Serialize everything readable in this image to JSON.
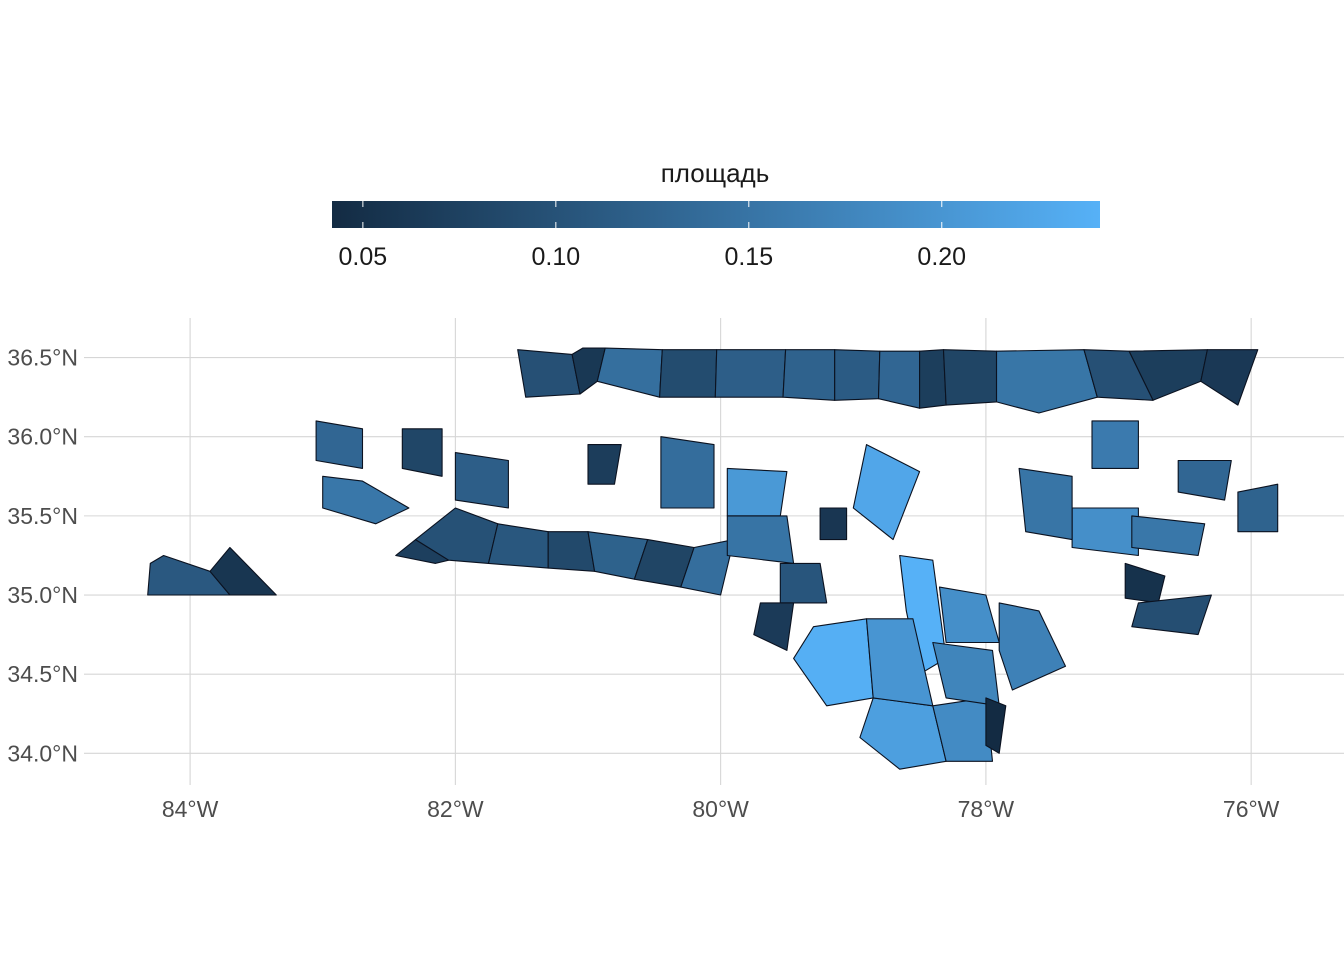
{
  "chart_data": {
    "type": "choropleth",
    "title": "",
    "legend": {
      "title": "площадь",
      "position": "top",
      "color_low": "#132B43",
      "color_high": "#56B1F7",
      "range": [
        0.042,
        0.241
      ],
      "breaks": [
        0.05,
        0.1,
        0.15,
        0.2
      ],
      "break_labels": [
        "0.05",
        "0.10",
        "0.15",
        "0.20"
      ]
    },
    "x_axis": {
      "lim": [
        -84.8,
        -75.3
      ],
      "breaks": [
        -84,
        -82,
        -80,
        -78,
        -76
      ],
      "labels": [
        "84°W",
        "82°W",
        "80°W",
        "78°W",
        "76°W"
      ]
    },
    "y_axis": {
      "lim": [
        33.8,
        36.75
      ],
      "breaks": [
        34.0,
        34.5,
        35.0,
        35.5,
        36.0,
        36.5
      ],
      "labels": [
        "34.0°N",
        "34.5°N",
        "35.0°N",
        "35.5°N",
        "36.0°N",
        "36.5°N"
      ]
    },
    "grid": true,
    "regions": [
      {
        "name": "c01",
        "value": 0.097,
        "outline": [
          [
            -81.47,
            36.25
          ],
          [
            -81.53,
            36.55
          ],
          [
            -81.12,
            36.52
          ],
          [
            -81.06,
            36.27
          ]
        ]
      },
      {
        "name": "c02",
        "value": 0.061,
        "outline": [
          [
            -81.12,
            36.52
          ],
          [
            -81.04,
            36.56
          ],
          [
            -80.87,
            36.56
          ],
          [
            -80.93,
            36.35
          ],
          [
            -81.06,
            36.27
          ]
        ]
      },
      {
        "name": "c03",
        "value": 0.143,
        "outline": [
          [
            -80.87,
            36.56
          ],
          [
            -80.44,
            36.55
          ],
          [
            -80.46,
            36.25
          ],
          [
            -80.93,
            36.35
          ]
        ]
      },
      {
        "name": "c04",
        "value": 0.07,
        "outline": [
          [
            -76.92,
            36.54
          ],
          [
            -76.33,
            36.55
          ],
          [
            -76.38,
            36.35
          ],
          [
            -76.74,
            36.23
          ]
        ]
      },
      {
        "name": "c05",
        "value": 0.153,
        "outline": [
          [
            -77.92,
            36.54
          ],
          [
            -77.26,
            36.55
          ],
          [
            -77.16,
            36.25
          ],
          [
            -77.6,
            36.15
          ],
          [
            -77.92,
            36.22
          ]
        ]
      },
      {
        "name": "c06",
        "value": 0.097,
        "outline": [
          [
            -77.26,
            36.55
          ],
          [
            -76.92,
            36.54
          ],
          [
            -76.74,
            36.23
          ],
          [
            -77.16,
            36.25
          ]
        ]
      },
      {
        "name": "c07",
        "value": 0.062,
        "outline": [
          [
            -76.33,
            36.55
          ],
          [
            -75.95,
            36.55
          ],
          [
            -76.1,
            36.2
          ],
          [
            -76.38,
            36.35
          ]
        ]
      },
      {
        "name": "c08",
        "value": 0.091,
        "outline": [
          [
            -80.44,
            36.55
          ],
          [
            -80.03,
            36.55
          ],
          [
            -80.04,
            36.25
          ],
          [
            -80.46,
            36.25
          ]
        ]
      },
      {
        "name": "c09",
        "value": 0.118,
        "outline": [
          [
            -80.03,
            36.55
          ],
          [
            -79.51,
            36.55
          ],
          [
            -79.53,
            36.25
          ],
          [
            -80.04,
            36.25
          ]
        ]
      },
      {
        "name": "c10",
        "value": 0.124,
        "outline": [
          [
            -79.51,
            36.55
          ],
          [
            -79.14,
            36.55
          ],
          [
            -79.14,
            36.23
          ],
          [
            -79.53,
            36.25
          ]
        ]
      },
      {
        "name": "c11",
        "value": 0.114,
        "outline": [
          [
            -79.14,
            36.55
          ],
          [
            -78.8,
            36.54
          ],
          [
            -78.81,
            36.24
          ],
          [
            -79.14,
            36.23
          ]
        ]
      },
      {
        "name": "c12",
        "value": 0.13,
        "outline": [
          [
            -78.8,
            36.54
          ],
          [
            -78.5,
            36.54
          ],
          [
            -78.5,
            36.18
          ],
          [
            -78.81,
            36.24
          ]
        ]
      },
      {
        "name": "c13",
        "value": 0.07,
        "outline": [
          [
            -78.5,
            36.54
          ],
          [
            -78.32,
            36.55
          ],
          [
            -78.3,
            36.2
          ],
          [
            -78.5,
            36.18
          ]
        ]
      },
      {
        "name": "c14",
        "value": 0.08,
        "outline": [
          [
            -78.32,
            36.55
          ],
          [
            -77.92,
            36.54
          ],
          [
            -77.92,
            36.22
          ],
          [
            -78.3,
            36.2
          ]
        ]
      },
      {
        "name": "c15",
        "value": 0.109,
        "outline": [
          [
            -84.2,
            35.25
          ],
          [
            -84.3,
            35.2
          ],
          [
            -84.32,
            35.0
          ],
          [
            -83.7,
            35.0
          ],
          [
            -83.85,
            35.15
          ]
        ]
      },
      {
        "name": "c16",
        "value": 0.058,
        "outline": [
          [
            -83.85,
            35.15
          ],
          [
            -83.7,
            35.0
          ],
          [
            -83.35,
            35.0
          ],
          [
            -83.7,
            35.3
          ]
        ]
      },
      {
        "name": "c17",
        "value": 0.155,
        "outline": [
          [
            -83.0,
            35.75
          ],
          [
            -82.7,
            35.72
          ],
          [
            -82.35,
            35.55
          ],
          [
            -82.6,
            35.45
          ],
          [
            -83.0,
            35.55
          ]
        ]
      },
      {
        "name": "c18",
        "value": 0.072,
        "outline": [
          [
            -82.45,
            35.25
          ],
          [
            -82.3,
            35.35
          ],
          [
            -82.05,
            35.22
          ],
          [
            -82.15,
            35.2
          ]
        ]
      },
      {
        "name": "c19",
        "value": 0.098,
        "outline": [
          [
            -82.05,
            35.22
          ],
          [
            -81.75,
            35.2
          ],
          [
            -81.68,
            35.45
          ],
          [
            -82.0,
            35.55
          ],
          [
            -82.3,
            35.35
          ]
        ]
      },
      {
        "name": "c20",
        "value": 0.107,
        "outline": [
          [
            -81.75,
            35.2
          ],
          [
            -81.3,
            35.17
          ],
          [
            -81.3,
            35.4
          ],
          [
            -81.68,
            35.45
          ]
        ]
      },
      {
        "name": "c21",
        "value": 0.086,
        "outline": [
          [
            -81.3,
            35.17
          ],
          [
            -80.95,
            35.15
          ],
          [
            -81.0,
            35.4
          ],
          [
            -81.3,
            35.4
          ]
        ]
      },
      {
        "name": "c22",
        "value": 0.123,
        "outline": [
          [
            -80.95,
            35.15
          ],
          [
            -80.65,
            35.1
          ],
          [
            -80.55,
            35.35
          ],
          [
            -81.0,
            35.4
          ]
        ]
      },
      {
        "name": "c23",
        "value": 0.08,
        "outline": [
          [
            -80.65,
            35.1
          ],
          [
            -80.3,
            35.05
          ],
          [
            -80.2,
            35.3
          ],
          [
            -80.55,
            35.35
          ]
        ]
      },
      {
        "name": "c24",
        "value": 0.142,
        "outline": [
          [
            -80.3,
            35.05
          ],
          [
            -80.0,
            35.0
          ],
          [
            -79.9,
            35.35
          ],
          [
            -80.2,
            35.3
          ]
        ]
      },
      {
        "name": "c25",
        "value": 0.205,
        "outline": [
          [
            -79.95,
            35.8
          ],
          [
            -79.5,
            35.78
          ],
          [
            -79.55,
            35.5
          ],
          [
            -79.95,
            35.5
          ]
        ]
      },
      {
        "name": "c26",
        "value": 0.14,
        "outline": [
          [
            -80.45,
            36.0
          ],
          [
            -80.05,
            35.95
          ],
          [
            -80.05,
            35.55
          ],
          [
            -80.45,
            35.55
          ]
        ]
      },
      {
        "name": "c27",
        "value": 0.225,
        "outline": [
          [
            -78.9,
            35.95
          ],
          [
            -78.5,
            35.78
          ],
          [
            -78.7,
            35.35
          ],
          [
            -79.0,
            35.55
          ]
        ]
      },
      {
        "name": "c28",
        "value": 0.241,
        "outline": [
          [
            -78.65,
            35.25
          ],
          [
            -78.4,
            35.22
          ],
          [
            -78.3,
            34.6
          ],
          [
            -78.5,
            34.5
          ],
          [
            -78.6,
            34.9
          ]
        ]
      },
      {
        "name": "c29",
        "value": 0.238,
        "outline": [
          [
            -79.3,
            34.8
          ],
          [
            -78.9,
            34.85
          ],
          [
            -78.85,
            34.35
          ],
          [
            -79.2,
            34.3
          ],
          [
            -79.45,
            34.6
          ]
        ]
      },
      {
        "name": "c30",
        "value": 0.215,
        "outline": [
          [
            -78.85,
            34.35
          ],
          [
            -78.4,
            34.3
          ],
          [
            -78.3,
            33.95
          ],
          [
            -78.65,
            33.9
          ],
          [
            -78.95,
            34.1
          ]
        ]
      },
      {
        "name": "c31",
        "value": 0.185,
        "outline": [
          [
            -78.4,
            34.3
          ],
          [
            -78.0,
            34.35
          ],
          [
            -77.95,
            33.95
          ],
          [
            -78.3,
            33.95
          ]
        ]
      },
      {
        "name": "c32",
        "value": 0.2,
        "outline": [
          [
            -78.9,
            34.85
          ],
          [
            -78.55,
            34.85
          ],
          [
            -78.4,
            34.3
          ],
          [
            -78.85,
            34.35
          ]
        ]
      },
      {
        "name": "c33",
        "value": 0.175,
        "outline": [
          [
            -78.4,
            34.7
          ],
          [
            -77.95,
            34.65
          ],
          [
            -77.9,
            34.3
          ],
          [
            -78.3,
            34.35
          ]
        ]
      },
      {
        "name": "c34",
        "value": 0.19,
        "outline": [
          [
            -78.35,
            35.05
          ],
          [
            -78.0,
            35.0
          ],
          [
            -77.9,
            34.7
          ],
          [
            -78.3,
            34.7
          ]
        ]
      },
      {
        "name": "c35",
        "value": 0.17,
        "outline": [
          [
            -77.9,
            34.95
          ],
          [
            -77.6,
            34.9
          ],
          [
            -77.4,
            34.55
          ],
          [
            -77.8,
            34.4
          ],
          [
            -77.9,
            34.65
          ]
        ]
      },
      {
        "name": "c36",
        "value": 0.042,
        "outline": [
          [
            -78.0,
            34.35
          ],
          [
            -77.85,
            34.3
          ],
          [
            -77.9,
            34.0
          ],
          [
            -78.0,
            34.05
          ]
        ]
      },
      {
        "name": "c37",
        "value": 0.19,
        "outline": [
          [
            -77.35,
            35.55
          ],
          [
            -76.85,
            35.55
          ],
          [
            -76.85,
            35.25
          ],
          [
            -77.35,
            35.3
          ]
        ]
      },
      {
        "name": "c38",
        "value": 0.052,
        "outline": [
          [
            -76.95,
            35.2
          ],
          [
            -76.65,
            35.12
          ],
          [
            -76.7,
            34.95
          ],
          [
            -76.95,
            34.98
          ]
        ]
      },
      {
        "name": "c39",
        "value": 0.152,
        "outline": [
          [
            -77.75,
            35.8
          ],
          [
            -77.35,
            35.75
          ],
          [
            -77.35,
            35.35
          ],
          [
            -77.7,
            35.4
          ]
        ]
      },
      {
        "name": "c40",
        "value": 0.16,
        "outline": [
          [
            -77.2,
            36.1
          ],
          [
            -76.85,
            36.1
          ],
          [
            -76.85,
            35.8
          ],
          [
            -77.2,
            35.8
          ]
        ]
      },
      {
        "name": "c41",
        "value": 0.13,
        "outline": [
          [
            -76.55,
            35.85
          ],
          [
            -76.15,
            35.85
          ],
          [
            -76.2,
            35.6
          ],
          [
            -76.55,
            35.65
          ]
        ]
      },
      {
        "name": "c42",
        "value": 0.125,
        "outline": [
          [
            -76.1,
            35.65
          ],
          [
            -75.8,
            35.7
          ],
          [
            -75.8,
            35.4
          ],
          [
            -76.1,
            35.4
          ]
        ]
      },
      {
        "name": "c43",
        "value": 0.155,
        "outline": [
          [
            -76.9,
            35.5
          ],
          [
            -76.35,
            35.45
          ],
          [
            -76.4,
            35.25
          ],
          [
            -76.9,
            35.3
          ]
        ]
      },
      {
        "name": "c44",
        "value": 0.094,
        "outline": [
          [
            -76.85,
            34.95
          ],
          [
            -76.3,
            35.0
          ],
          [
            -76.4,
            34.75
          ],
          [
            -76.9,
            34.8
          ]
        ]
      },
      {
        "name": "c45",
        "value": 0.15,
        "outline": [
          [
            -79.95,
            35.5
          ],
          [
            -79.5,
            35.5
          ],
          [
            -79.45,
            35.2
          ],
          [
            -79.95,
            35.25
          ]
        ]
      },
      {
        "name": "c46",
        "value": 0.068,
        "outline": [
          [
            -81.0,
            35.95
          ],
          [
            -80.75,
            35.95
          ],
          [
            -80.8,
            35.7
          ],
          [
            -81.0,
            35.7
          ]
        ]
      },
      {
        "name": "c47",
        "value": 0.118,
        "outline": [
          [
            -82.0,
            35.9
          ],
          [
            -81.6,
            35.85
          ],
          [
            -81.6,
            35.55
          ],
          [
            -82.0,
            35.6
          ]
        ]
      },
      {
        "name": "c48",
        "value": 0.082,
        "outline": [
          [
            -82.4,
            36.05
          ],
          [
            -82.1,
            36.05
          ],
          [
            -82.1,
            35.75
          ],
          [
            -82.4,
            35.8
          ]
        ]
      },
      {
        "name": "c49",
        "value": 0.13,
        "outline": [
          [
            -83.05,
            36.1
          ],
          [
            -82.7,
            36.05
          ],
          [
            -82.7,
            35.8
          ],
          [
            -83.05,
            35.85
          ]
        ]
      },
      {
        "name": "c50",
        "value": 0.059,
        "outline": [
          [
            -79.25,
            35.55
          ],
          [
            -79.05,
            35.55
          ],
          [
            -79.05,
            35.35
          ],
          [
            -79.25,
            35.35
          ]
        ]
      },
      {
        "name": "c51",
        "value": 0.105,
        "outline": [
          [
            -79.55,
            35.2
          ],
          [
            -79.25,
            35.2
          ],
          [
            -79.2,
            34.95
          ],
          [
            -79.55,
            34.95
          ]
        ]
      },
      {
        "name": "c52",
        "value": 0.065,
        "outline": [
          [
            -79.7,
            34.95
          ],
          [
            -79.45,
            34.95
          ],
          [
            -79.5,
            34.65
          ],
          [
            -79.75,
            34.75
          ]
        ]
      }
    ],
    "state_outline_note": "county polygons are approximate"
  }
}
